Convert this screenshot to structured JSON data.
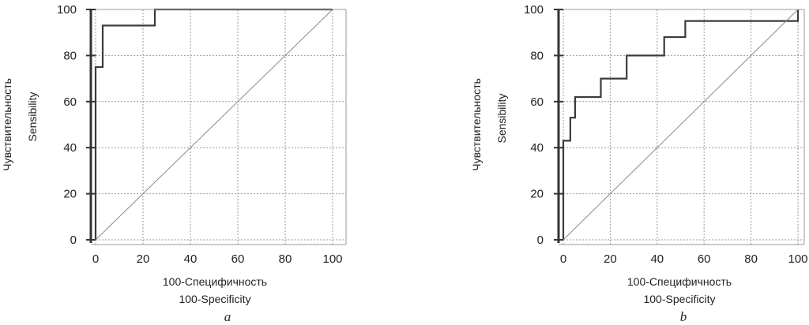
{
  "figure": {
    "panels": [
      "a",
      "b"
    ]
  },
  "chart_data": [
    {
      "type": "line",
      "panel_label": "a",
      "ylabel_ru": "Чувствительность",
      "ylabel_en": "Sensibility",
      "xlabel_ru": "100-Специфичность",
      "xlabel_en": "100-Specificity",
      "xlim": [
        0,
        100
      ],
      "ylim": [
        0,
        100
      ],
      "xticks": [
        "0",
        "20",
        "40",
        "60",
        "80",
        "100"
      ],
      "yticks": [
        "0",
        "20",
        "40",
        "60",
        "80",
        "100"
      ],
      "grid": true,
      "series": [
        {
          "role": "roc-curve",
          "x": [
            0,
            0,
            3,
            3,
            25,
            25,
            100
          ],
          "y": [
            0,
            75,
            75,
            93,
            93,
            100,
            100
          ]
        },
        {
          "role": "reference-diagonal",
          "x": [
            0,
            100
          ],
          "y": [
            0,
            100
          ]
        }
      ]
    },
    {
      "type": "line",
      "panel_label": "b",
      "ylabel_ru": "Чувствительность",
      "ylabel_en": "Sensibility",
      "xlabel_ru": "100-Специфичность",
      "xlabel_en": "100-Specificity",
      "xlim": [
        0,
        100
      ],
      "ylim": [
        0,
        100
      ],
      "xticks": [
        "0",
        "20",
        "40",
        "60",
        "80",
        "100"
      ],
      "yticks": [
        "0",
        "20",
        "40",
        "60",
        "80",
        "100"
      ],
      "grid": true,
      "series": [
        {
          "role": "roc-curve",
          "x": [
            0,
            0,
            3,
            3,
            5,
            5,
            8,
            8,
            16,
            16,
            27,
            27,
            43,
            43,
            52,
            52,
            100,
            100
          ],
          "y": [
            0,
            43,
            43,
            53,
            53,
            62,
            62,
            62,
            62,
            70,
            70,
            80,
            80,
            88,
            88,
            95,
            95,
            100
          ]
        },
        {
          "role": "reference-diagonal",
          "x": [
            0,
            100
          ],
          "y": [
            0,
            100
          ]
        }
      ]
    }
  ]
}
